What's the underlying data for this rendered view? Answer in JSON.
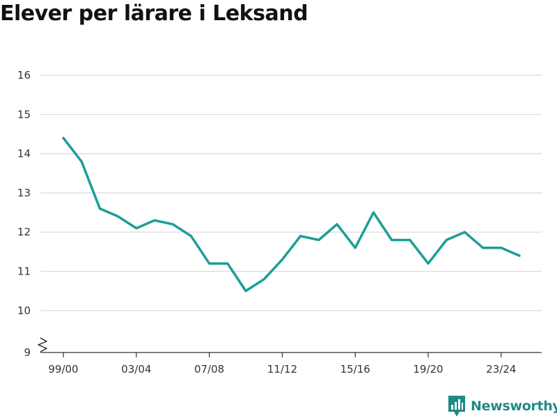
{
  "title": "Elever per lärare i Leksand",
  "brand": {
    "name": "Newsworthy",
    "icon": "bar-chart-icon"
  },
  "colors": {
    "line": "#1a9e96",
    "grid": "#d9d9d9",
    "axis": "#333333",
    "brand": "#1f8a86"
  },
  "chart_data": {
    "type": "line",
    "title": "Elever per lärare i Leksand",
    "xlabel": "",
    "ylabel": "",
    "x": [
      "99/00",
      "00/01",
      "01/02",
      "02/03",
      "03/04",
      "04/05",
      "05/06",
      "06/07",
      "07/08",
      "08/09",
      "09/10",
      "10/11",
      "11/12",
      "12/13",
      "13/14",
      "14/15",
      "15/16",
      "16/17",
      "17/18",
      "18/19",
      "19/20",
      "20/21",
      "21/22",
      "22/23",
      "23/24",
      "24/25"
    ],
    "xticks": [
      "99/00",
      "03/04",
      "07/08",
      "11/12",
      "15/16",
      "19/20",
      "23/24"
    ],
    "series": [
      {
        "values": [
          14.4,
          13.8,
          12.6,
          12.4,
          12.1,
          12.3,
          12.2,
          11.9,
          11.2,
          11.2,
          10.5,
          10.8,
          11.3,
          11.9,
          11.8,
          12.2,
          11.6,
          12.5,
          11.8,
          11.8,
          11.2,
          11.8,
          12.0,
          11.6,
          11.6,
          11.4
        ]
      }
    ],
    "yticks": [
      9,
      10,
      11,
      12,
      13,
      14,
      15,
      16
    ],
    "ylim": [
      9,
      16
    ],
    "y_axis_break": true,
    "grid": true,
    "legend": "none"
  }
}
